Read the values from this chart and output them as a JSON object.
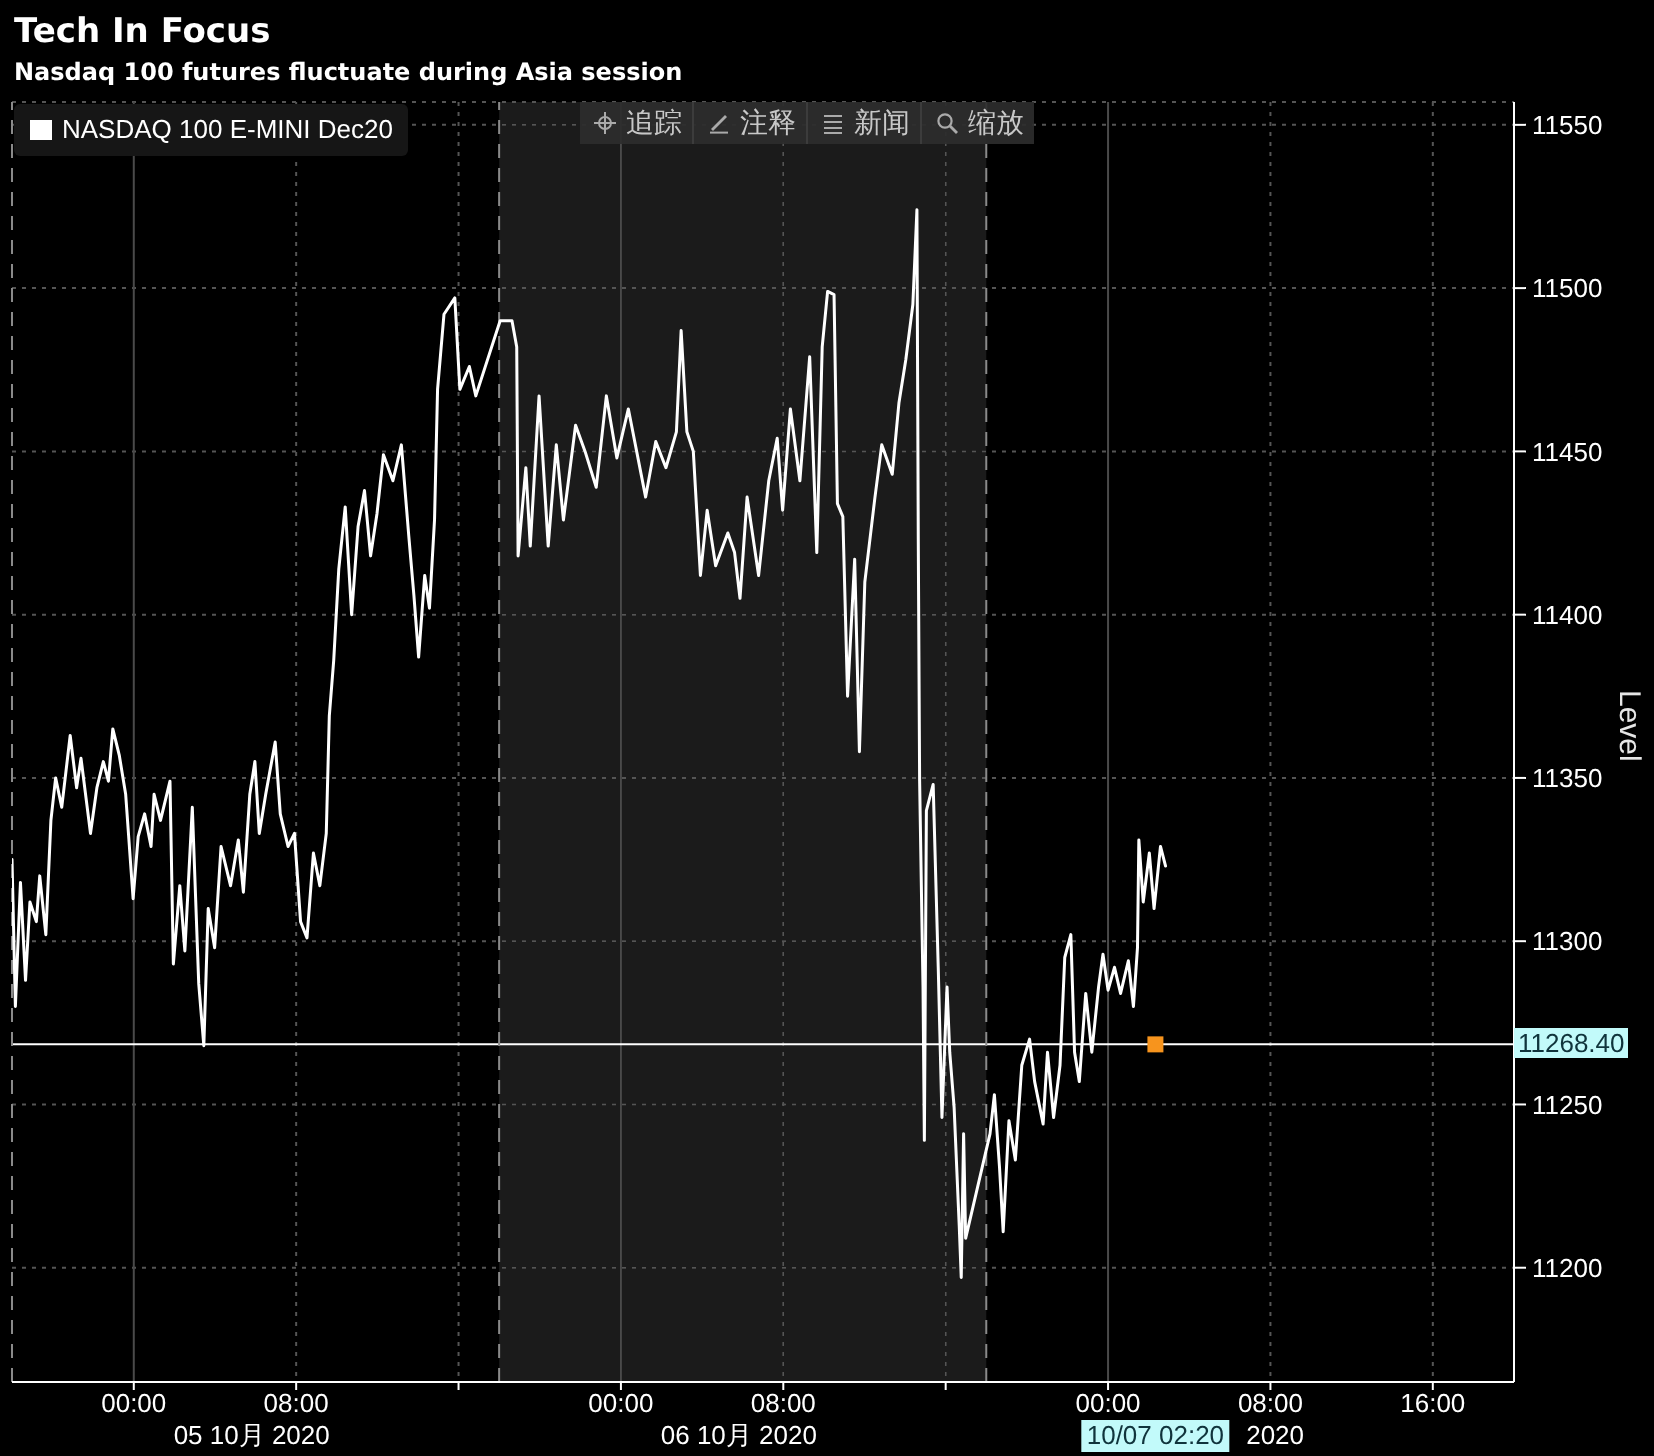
{
  "chart_data": {
    "type": "line",
    "title": "Tech In Focus",
    "subtitle": "Nasdaq 100 futures fluctuate during Asia session",
    "ylabel": "Level",
    "xlim": [
      "2020-10-04T18:00",
      "2020-10-07T20:00"
    ],
    "xticks": [
      {
        "value": "2020-10-05T00:00",
        "label": "00:00"
      },
      {
        "value": "2020-10-05T08:00",
        "label": "08:00"
      },
      {
        "value": "2020-10-05T16:00",
        "label": null
      },
      {
        "value": "2020-10-06T00:00",
        "label": "00:00"
      },
      {
        "value": "2020-10-06T08:00",
        "label": "08:00"
      },
      {
        "value": "2020-10-06T16:00",
        "label": null
      },
      {
        "value": "2020-10-07T00:00",
        "label": "00:00"
      },
      {
        "value": "2020-10-07T08:00",
        "label": "08:00"
      },
      {
        "value": "2020-10-07T16:00",
        "label": "16:00"
      }
    ],
    "ylim": [
      11165,
      11557
    ],
    "yticks": [
      11200,
      11250,
      11300,
      11350,
      11400,
      11450,
      11500,
      11550
    ],
    "grid": true,
    "legend": "top left",
    "series": [
      {
        "name": "NASDAQ 100 E-MINI Dec20",
        "color": "#ffffff",
        "x": [
          "2020-10-04T18:00",
          "2020-10-04T18:10",
          "2020-10-04T18:25",
          "2020-10-04T18:40",
          "2020-10-04T18:53",
          "2020-10-04T19:12",
          "2020-10-04T19:22",
          "2020-10-04T19:40",
          "2020-10-04T19:55",
          "2020-10-04T20:09",
          "2020-10-04T20:27",
          "2020-10-04T20:52",
          "2020-10-04T21:11",
          "2020-10-04T21:24",
          "2020-10-04T21:52",
          "2020-10-04T22:11",
          "2020-10-04T22:30",
          "2020-10-04T22:45",
          "2020-10-04T22:58",
          "2020-10-04T23:17",
          "2020-10-04T23:36",
          "2020-10-04T23:58",
          "2020-10-05T00:13",
          "2020-10-05T00:32",
          "2020-10-05T00:51",
          "2020-10-05T01:00",
          "2020-10-05T01:19",
          "2020-10-05T01:47",
          "2020-10-05T01:57",
          "2020-10-05T02:16",
          "2020-10-05T02:31",
          "2020-10-05T02:53",
          "2020-10-05T03:12",
          "2020-10-05T03:27",
          "2020-10-05T03:40",
          "2020-10-05T03:59",
          "2020-10-05T04:18",
          "2020-10-05T04:46",
          "2020-10-05T05:09",
          "2020-10-05T05:24",
          "2020-10-05T05:43",
          "2020-10-05T05:58",
          "2020-10-05T06:11",
          "2020-10-05T06:30",
          "2020-10-05T06:58",
          "2020-10-05T07:13",
          "2020-10-05T07:36",
          "2020-10-05T07:55",
          "2020-10-05T08:13",
          "2020-10-05T08:32",
          "2020-10-05T08:51",
          "2020-10-05T09:10",
          "2020-10-05T09:29",
          "2020-10-05T09:38",
          "2020-10-05T09:51",
          "2020-10-05T10:06",
          "2020-10-05T10:25",
          "2020-10-05T10:44",
          "2020-10-05T11:03",
          "2020-10-05T11:22",
          "2020-10-05T11:40",
          "2020-10-05T11:59",
          "2020-10-05T12:18",
          "2020-10-05T12:46",
          "2020-10-05T13:11",
          "2020-10-05T13:33",
          "2020-10-05T13:48",
          "2020-10-05T14:02",
          "2020-10-05T14:20",
          "2020-10-05T14:34",
          "2020-10-05T14:49",
          "2020-10-05T14:58",
          "2020-10-05T15:17",
          "2020-10-05T15:49",
          "2020-10-05T16:04",
          "2020-10-05T16:32",
          "2020-10-05T16:51",
          "2020-10-05T18:03",
          "2020-10-05T18:38",
          "2020-10-05T18:52",
          "2020-10-05T18:56",
          "2020-10-05T19:19",
          "2020-10-05T19:32",
          "2020-10-05T19:58",
          "2020-10-05T20:25",
          "2020-10-05T20:49",
          "2020-10-05T21:10",
          "2020-10-05T21:46",
          "2020-10-05T22:14",
          "2020-10-05T22:47",
          "2020-10-05T23:17",
          "2020-10-05T23:48",
          "2020-10-06T00:22",
          "2020-10-06T01:13",
          "2020-10-06T01:43",
          "2020-10-06T02:13",
          "2020-10-06T02:44",
          "2020-10-06T02:58",
          "2020-10-06T03:15",
          "2020-10-06T03:34",
          "2020-10-06T03:55",
          "2020-10-06T04:15",
          "2020-10-06T04:40",
          "2020-10-06T05:16",
          "2020-10-06T05:36",
          "2020-10-06T05:52",
          "2020-10-06T06:13",
          "2020-10-06T06:47",
          "2020-10-06T07:17",
          "2020-10-06T07:42",
          "2020-10-06T07:58",
          "2020-10-06T08:21",
          "2020-10-06T08:49",
          "2020-10-06T09:18",
          "2020-10-06T09:39",
          "2020-10-06T09:55",
          "2020-10-06T10:11",
          "2020-10-06T10:30",
          "2020-10-06T10:40",
          "2020-10-06T10:56",
          "2020-10-06T11:10",
          "2020-10-06T11:31",
          "2020-10-06T11:45",
          "2020-10-06T12:01",
          "2020-10-06T12:31",
          "2020-10-06T12:51",
          "2020-10-06T13:22",
          "2020-10-06T13:42",
          "2020-10-06T14:02",
          "2020-10-06T14:23",
          "2020-10-06T14:35",
          "2020-10-06T14:39",
          "2020-10-06T14:43",
          "2020-10-06T14:53",
          "2020-10-06T14:57",
          "2020-10-06T15:03",
          "2020-10-06T15:23",
          "2020-10-06T15:38",
          "2020-10-06T15:49",
          "2020-10-06T16:04",
          "2020-10-06T16:12",
          "2020-10-06T16:25",
          "2020-10-06T16:40",
          "2020-10-06T16:46",
          "2020-10-06T16:53",
          "2020-10-06T16:59",
          "2020-10-06T18:11",
          "2020-10-06T18:24",
          "2020-10-06T18:39",
          "2020-10-06T18:50",
          "2020-10-06T19:07",
          "2020-10-06T19:26",
          "2020-10-06T19:45",
          "2020-10-06T20:08",
          "2020-10-06T20:23",
          "2020-10-06T20:48",
          "2020-10-06T21:01",
          "2020-10-06T21:19",
          "2020-10-06T21:38",
          "2020-10-06T21:52",
          "2020-10-06T22:10",
          "2020-10-06T22:21",
          "2020-10-06T22:35",
          "2020-10-06T22:54",
          "2020-10-06T23:12",
          "2020-10-06T23:32",
          "2020-10-06T23:45",
          "2020-10-07T00:00",
          "2020-10-07T00:19",
          "2020-10-07T00:37",
          "2020-10-07T01:00",
          "2020-10-07T01:15",
          "2020-10-07T01:27",
          "2020-10-07T01:31",
          "2020-10-07T01:44",
          "2020-10-07T02:02",
          "2020-10-07T02:16",
          "2020-10-07T02:35",
          "2020-10-07T02:50"
        ],
        "values": [
          11325,
          11280,
          11318,
          11288,
          11312,
          11306,
          11320,
          11302,
          11337,
          11350,
          11341,
          11363,
          11347,
          11356,
          11333,
          11347,
          11355,
          11349,
          11365,
          11357,
          11345,
          11313,
          11332,
          11339,
          11329,
          11345,
          11337,
          11349,
          11293,
          11317,
          11297,
          11341,
          11287,
          11268,
          11310,
          11298,
          11329,
          11317,
          11331,
          11315,
          11345,
          11355,
          11333,
          11345,
          11361,
          11339,
          11329,
          11333,
          11306,
          11301,
          11327,
          11317,
          11333,
          11369,
          11386,
          11414,
          11433,
          11400,
          11427,
          11438,
          11418,
          11431,
          11449,
          11441,
          11452,
          11424,
          11406,
          11387,
          11412,
          11402,
          11429,
          11469,
          11492,
          11497,
          11469,
          11476,
          11467,
          11490,
          11490,
          11482,
          11418,
          11445,
          11421,
          11467,
          11421,
          11452,
          11429,
          11458,
          11450,
          11439,
          11467,
          11448,
          11463,
          11436,
          11453,
          11445,
          11456,
          11487,
          11456,
          11450,
          11412,
          11432,
          11415,
          11425,
          11419,
          11405,
          11436,
          11412,
          11441,
          11454,
          11432,
          11463,
          11441,
          11479,
          11419,
          11482,
          11499,
          11498,
          11434,
          11430,
          11375,
          11417,
          11358,
          11410,
          11436,
          11452,
          11443,
          11465,
          11478,
          11495,
          11524,
          11423,
          11349,
          11286,
          11239,
          11340,
          11348,
          11292,
          11246,
          11286,
          11266,
          11249,
          11213,
          11197,
          11241,
          11209,
          11241,
          11253,
          11231,
          11211,
          11245,
          11233,
          11262,
          11270,
          11257,
          11244,
          11266,
          11246,
          11262,
          11295,
          11302,
          11266,
          11257,
          11284,
          11266,
          11286,
          11296,
          11285,
          11292,
          11284,
          11294,
          11280,
          11298,
          11331,
          11312,
          11327,
          11310,
          11329,
          11323
        ]
      },
      {
        "type": "scatter",
        "color": "#f7941d",
        "marker": "square",
        "x": [
          "2020-10-07T02:20"
        ],
        "values": [
          11268.4
        ]
      }
    ],
    "ref_lines": [
      {
        "axis": "y",
        "value": 11268.4,
        "label": "11268.40",
        "color": "#ffffff"
      },
      {
        "axis": "x",
        "value": "2020-10-04T18:00",
        "color": "#8a8a8a",
        "line_style": "dashed"
      },
      {
        "axis": "x",
        "value": "2020-10-05T18:00",
        "color": "#8a8a8a",
        "line_style": "dashed"
      },
      {
        "axis": "x",
        "value": "2020-10-06T18:00",
        "color": "#8a8a8a",
        "line_style": "dashed"
      }
    ],
    "bands": [
      {
        "axis": "x",
        "from": "2020-10-05T18:00",
        "to": "2020-10-06T18:00",
        "color": "#1b1b1b"
      }
    ],
    "annotations": [
      "追踪",
      "注释",
      "新闻",
      "缩放",
      "05 10月 2020",
      "06 10月 2020",
      "2020",
      "10/07 02:20"
    ]
  }
}
